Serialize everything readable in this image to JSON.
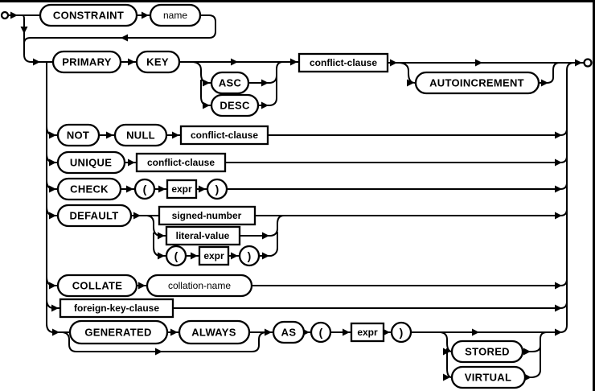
{
  "diagram": {
    "keywords": {
      "constraint": "CONSTRAINT",
      "primary": "PRIMARY",
      "key": "KEY",
      "asc": "ASC",
      "desc": "DESC",
      "autoincrement": "AUTOINCREMENT",
      "not": "NOT",
      "null": "NULL",
      "unique": "UNIQUE",
      "check": "CHECK",
      "default": "DEFAULT",
      "collate": "COLLATE",
      "generated": "GENERATED",
      "always": "ALWAYS",
      "as": "AS",
      "stored": "STORED",
      "virtual": "VIRTUAL"
    },
    "nonterminals": {
      "name": "name",
      "conflict_clause": "conflict-clause",
      "expr": "expr",
      "signed_number": "signed-number",
      "literal_value": "literal-value",
      "collation_name": "collation-name",
      "foreign_key_clause": "foreign-key-clause"
    },
    "punctuation": {
      "lparen": "(",
      "rparen": ")"
    },
    "colors": {
      "line": "#000000",
      "background": "#ffffff",
      "text": "#000000"
    }
  }
}
